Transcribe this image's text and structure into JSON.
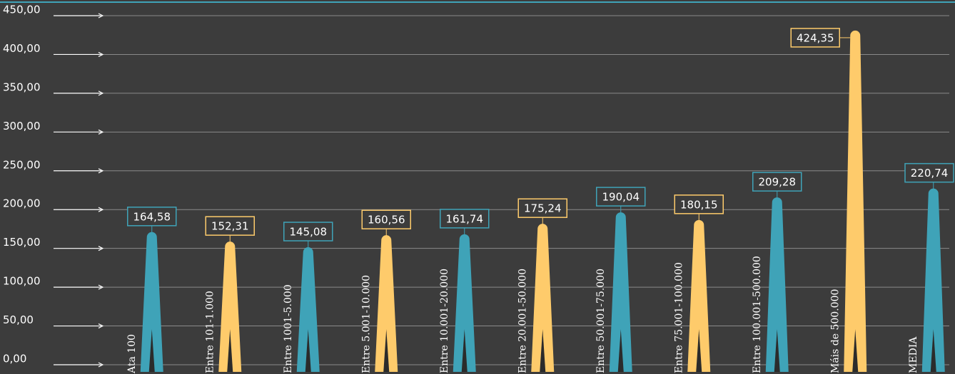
{
  "chart_data": {
    "type": "spike",
    "categories": [
      "Ata 100",
      "Entre 101-1.000",
      "Entre 1001-5.000",
      "Entre 5.001-10.000",
      "Entre 10.001-20.000",
      "Entre 20.001-50.000",
      "Entre 50.001-75.000",
      "Entre 75.001-100.000",
      "Entre 100.001-500.000",
      "Máis de 500.000",
      "MEDIA"
    ],
    "values": [
      164.58,
      152.31,
      145.08,
      160.56,
      161.74,
      175.24,
      190.04,
      180.15,
      209.28,
      424.35,
      220.74
    ],
    "value_labels": [
      "164,58",
      "152,31",
      "145,08",
      "160,56",
      "161,74",
      "175,24",
      "190,04",
      "180,15",
      "209,28",
      "424,35",
      "220,74"
    ],
    "colors": [
      "#3fa3b8",
      "#fecb6b",
      "#3fa3b8",
      "#fecb6b",
      "#3fa3b8",
      "#fecb6b",
      "#3fa3b8",
      "#fecb6b",
      "#3fa3b8",
      "#fecb6b",
      "#3fa3b8"
    ],
    "ylim": [
      0,
      450
    ],
    "yticks": [
      {
        "value": 0,
        "label": "0,00"
      },
      {
        "value": 50,
        "label": "50,00"
      },
      {
        "value": 100,
        "label": "100,00"
      },
      {
        "value": 150,
        "label": "150,00"
      },
      {
        "value": 200,
        "label": "200,00"
      },
      {
        "value": 250,
        "label": "250,00"
      },
      {
        "value": 300,
        "label": "300,00"
      },
      {
        "value": 350,
        "label": "350,00"
      },
      {
        "value": 400,
        "label": "400,00"
      },
      {
        "value": 450,
        "label": "450,00"
      }
    ],
    "grid": true
  }
}
